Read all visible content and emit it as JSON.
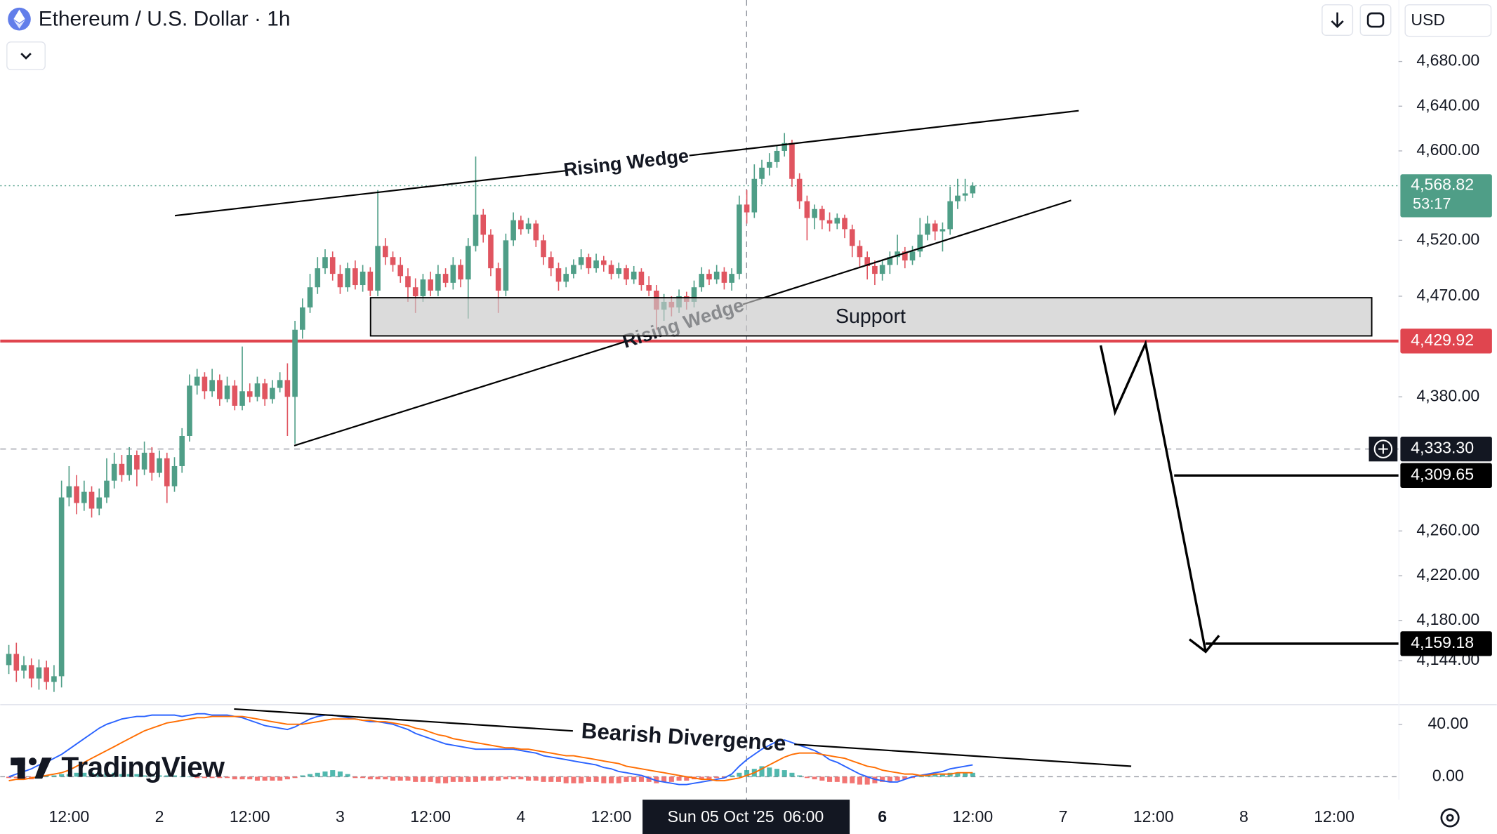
{
  "header": {
    "title": "Ethereum / U.S. Dollar · 1h",
    "currency": "USD"
  },
  "watermark": "TradingView",
  "chart_data": [
    {
      "type": "candlestick",
      "categories": [
        null,
        null,
        null,
        null,
        null,
        null,
        null,
        null,
        "12:00",
        null,
        null,
        null,
        null,
        null,
        null,
        null,
        null,
        null,
        null,
        null,
        "2",
        null,
        null,
        null,
        null,
        null,
        null,
        null,
        null,
        null,
        null,
        null,
        "12:00",
        null,
        null,
        null,
        null,
        null,
        null,
        null,
        null,
        null,
        null,
        null,
        "3",
        null,
        null,
        null,
        null,
        null,
        null,
        null,
        null,
        null,
        null,
        null,
        "12:00",
        null,
        null,
        null,
        null,
        null,
        null,
        null,
        null,
        null,
        null,
        null,
        "4",
        null,
        null,
        null,
        null,
        null,
        null,
        null,
        null,
        null,
        null,
        null,
        "12:00",
        null,
        null,
        null,
        null,
        null,
        null,
        null,
        null,
        null,
        null,
        null,
        null,
        null,
        null,
        null,
        null,
        null,
        null,
        null,
        null,
        null,
        null,
        null,
        null,
        null,
        null,
        null,
        null,
        null,
        null,
        null,
        null,
        null,
        null,
        null,
        "6",
        null,
        null,
        null,
        null,
        null,
        null,
        null,
        null,
        null,
        null,
        null,
        "12:00"
      ],
      "future_ticks": [
        "7",
        "12:00",
        "8",
        "12:00"
      ],
      "open": [
        4140,
        4150,
        4135,
        4140,
        4128,
        4138,
        4125,
        4130,
        4290,
        4300,
        4285,
        4295,
        4280,
        4290,
        4305,
        4320,
        4310,
        4328,
        4315,
        4330,
        4312,
        4325,
        4300,
        4318,
        4345,
        4390,
        4398,
        4385,
        4395,
        4378,
        4390,
        4372,
        4385,
        4380,
        4392,
        4378,
        4388,
        4395,
        4380,
        4440,
        4460,
        4478,
        4495,
        4505,
        4490,
        4478,
        4495,
        4480,
        4492,
        4475,
        4515,
        4505,
        4498,
        4488,
        4478,
        4470,
        4485,
        4475,
        4490,
        4482,
        4498,
        4485,
        4515,
        4543,
        4525,
        4495,
        4475,
        4520,
        4538,
        4530,
        4535,
        4520,
        4505,
        4495,
        4483,
        4490,
        4498,
        4505,
        4495,
        4502,
        4498,
        4490,
        4495,
        4485,
        4492,
        4480,
        4475,
        4458,
        4465,
        4460,
        4470,
        4465,
        4478,
        4490,
        4485,
        4492,
        4482,
        4490,
        4552,
        4545,
        4575,
        4585,
        4590,
        4600,
        4607,
        4575,
        4555,
        4540,
        4548,
        4538,
        4535,
        4540,
        4530,
        4515,
        4505,
        4497,
        4490,
        4498,
        4505,
        4510,
        4502,
        4510,
        4525,
        4535,
        4528,
        4530,
        4555,
        4560,
        4562
      ],
      "high": [
        4158,
        4160,
        4148,
        4146,
        4145,
        4144,
        4140,
        4305,
        4318,
        4310,
        4305,
        4300,
        4298,
        4325,
        4330,
        4328,
        4335,
        4332,
        4340,
        4335,
        4332,
        4330,
        4326,
        4352,
        4400,
        4405,
        4402,
        4405,
        4400,
        4398,
        4395,
        4425,
        4392,
        4398,
        4396,
        4395,
        4402,
        4410,
        4448,
        4468,
        4490,
        4505,
        4512,
        4510,
        4498,
        4500,
        4502,
        4498,
        4496,
        4565,
        4522,
        4510,
        4505,
        4495,
        4486,
        4490,
        4492,
        4498,
        4495,
        4505,
        4503,
        4522,
        4595,
        4548,
        4530,
        4500,
        4526,
        4545,
        4542,
        4540,
        4538,
        4525,
        4510,
        4500,
        4496,
        4503,
        4512,
        4508,
        4508,
        4506,
        4502,
        4500,
        4498,
        4497,
        4495,
        4488,
        4480,
        4472,
        4470,
        4476,
        4474,
        4484,
        4496,
        4494,
        4498,
        4496,
        4495,
        4560,
        4565,
        4588,
        4592,
        4598,
        4605,
        4616,
        4610,
        4580,
        4560,
        4552,
        4551,
        4545,
        4544,
        4543,
        4534,
        4520,
        4510,
        4502,
        4503,
        4510,
        4525,
        4514,
        4515,
        4540,
        4542,
        4538,
        4536,
        4568,
        4575,
        4575,
        4572
      ],
      "low": [
        4132,
        4125,
        4128,
        4120,
        4118,
        4118,
        4116,
        4120,
        4282,
        4275,
        4278,
        4272,
        4274,
        4285,
        4298,
        4304,
        4305,
        4300,
        4310,
        4305,
        4308,
        4285,
        4295,
        4312,
        4340,
        4382,
        4378,
        4380,
        4372,
        4375,
        4368,
        4368,
        4375,
        4376,
        4372,
        4374,
        4384,
        4345,
        4338,
        4432,
        4455,
        4472,
        4490,
        4484,
        4472,
        4474,
        4476,
        4474,
        4470,
        4470,
        4498,
        4492,
        4482,
        4465,
        4455,
        4465,
        4470,
        4470,
        4478,
        4476,
        4478,
        4450,
        4510,
        4518,
        4488,
        4455,
        4470,
        4515,
        4525,
        4526,
        4514,
        4498,
        4488,
        4475,
        4478,
        4486,
        4494,
        4490,
        4491,
        4492,
        4485,
        4486,
        4480,
        4481,
        4475,
        4470,
        4440,
        4448,
        4452,
        4455,
        4458,
        4460,
        4474,
        4480,
        4481,
        4476,
        4475,
        4485,
        4535,
        4540,
        4570,
        4578,
        4585,
        4595,
        4568,
        4548,
        4520,
        4530,
        4530,
        4528,
        4530,
        4522,
        4505,
        4495,
        4485,
        4480,
        4484,
        4490,
        4498,
        4495,
        4498,
        4505,
        4520,
        4520,
        4510,
        4525,
        4548,
        4555,
        4558
      ],
      "close": [
        4150,
        4135,
        4140,
        4128,
        4138,
        4125,
        4130,
        4290,
        4300,
        4285,
        4295,
        4280,
        4290,
        4305,
        4320,
        4310,
        4328,
        4315,
        4330,
        4312,
        4325,
        4300,
        4318,
        4345,
        4390,
        4398,
        4385,
        4395,
        4378,
        4390,
        4372,
        4385,
        4380,
        4392,
        4378,
        4388,
        4395,
        4380,
        4440,
        4460,
        4478,
        4495,
        4505,
        4490,
        4478,
        4495,
        4480,
        4492,
        4475,
        4515,
        4505,
        4498,
        4488,
        4478,
        4470,
        4485,
        4475,
        4490,
        4482,
        4498,
        4485,
        4515,
        4543,
        4525,
        4495,
        4475,
        4520,
        4538,
        4530,
        4535,
        4520,
        4505,
        4495,
        4483,
        4490,
        4498,
        4505,
        4495,
        4502,
        4498,
        4490,
        4495,
        4485,
        4492,
        4480,
        4475,
        4458,
        4465,
        4460,
        4470,
        4465,
        4478,
        4490,
        4485,
        4492,
        4482,
        4490,
        4552,
        4545,
        4575,
        4585,
        4590,
        4600,
        4607,
        4575,
        4555,
        4540,
        4548,
        4538,
        4535,
        4540,
        4530,
        4515,
        4505,
        4497,
        4490,
        4498,
        4505,
        4510,
        4502,
        4510,
        4525,
        4535,
        4528,
        4530,
        4555,
        4560,
        4562,
        4568.82
      ],
      "up_color": "#4f9e87",
      "down_color": "#e05560",
      "ylim": [
        4105,
        4735
      ],
      "yticks": [
        {
          "value": 4680,
          "label": "4,680.00"
        },
        {
          "value": 4640,
          "label": "4,640.00"
        },
        {
          "value": 4600,
          "label": "4,600.00"
        },
        {
          "value": 4520,
          "label": "4,520.00"
        },
        {
          "value": 4470,
          "label": "4,470.00"
        },
        {
          "value": 4380,
          "label": "4,380.00"
        },
        {
          "value": 4260,
          "label": "4,260.00"
        },
        {
          "value": 4220,
          "label": "4,220.00"
        },
        {
          "value": 4180,
          "label": "4,180.00"
        },
        {
          "value": 4144,
          "label": "4,144.00"
        }
      ],
      "price_lines": [
        {
          "value": 4568.82,
          "label": "4,568.82",
          "color": "#4f9e87",
          "style": "dotted"
        },
        {
          "value": 4429.92,
          "label": "4,429.92",
          "color": "#e0454f",
          "style": "solid"
        },
        {
          "value": 4333.3,
          "label": "4,333.30",
          "color": "#131722",
          "style": "dashed"
        },
        {
          "value": 4309.65,
          "label": "4,309.65",
          "color": "#000000",
          "style": "ray"
        },
        {
          "value": 4159.18,
          "label": "4,159.18",
          "color": "#000000",
          "style": "ray"
        }
      ],
      "countdown": "53:17",
      "crosshair_time": "Sun 05 Oct '25  06:00",
      "annotations": [
        "Rising Wedge",
        "Rising Wedge",
        "Support"
      ]
    },
    {
      "type": "macd",
      "ylim": [
        -17.5,
        55.3
      ],
      "yticks": [
        {
          "value": 40,
          "label": "40.00"
        },
        {
          "value": 0,
          "label": "0.00"
        }
      ],
      "series": [
        {
          "color": "#2962ff",
          "values": [
            0,
            2,
            4,
            6,
            9,
            11,
            14,
            17,
            21,
            25,
            29,
            33,
            37,
            40,
            42,
            44,
            45,
            46,
            46,
            47,
            47,
            47,
            47,
            46,
            47,
            48,
            48,
            47,
            47,
            47,
            46,
            45,
            43,
            41,
            39,
            38,
            37,
            36,
            38,
            41,
            44,
            46,
            47,
            47,
            46,
            45,
            44,
            43,
            42,
            42,
            41,
            40,
            38,
            36,
            33,
            31,
            29,
            27,
            25,
            24,
            23,
            22,
            21,
            21,
            21,
            21,
            21,
            21,
            20,
            19,
            18,
            16,
            15,
            14,
            13,
            12,
            11,
            10,
            9,
            7,
            6,
            4,
            3,
            2,
            1,
            -1,
            -3,
            -4,
            -5,
            -6,
            -6,
            -5,
            -4,
            -3,
            -2,
            -1,
            2,
            8,
            13,
            17,
            21,
            24,
            27,
            28,
            26,
            24,
            22,
            20,
            17,
            13,
            11,
            8,
            5,
            2,
            0,
            -2,
            -3,
            -4,
            -4,
            -2,
            0,
            1,
            2,
            3,
            4,
            6,
            7,
            8,
            9
          ]
        },
        {
          "color": "#ff6d00",
          "values": [
            -3,
            -2,
            -2,
            -1,
            0,
            1,
            2,
            3,
            5,
            8,
            11,
            14,
            17,
            20,
            23,
            26,
            29,
            32,
            35,
            37,
            39,
            41,
            42,
            43,
            44,
            45,
            45,
            46,
            46,
            46,
            46,
            46,
            45,
            44,
            43,
            42,
            41,
            40,
            40,
            40,
            41,
            42,
            43,
            44,
            44,
            44,
            44,
            43,
            43,
            42,
            42,
            41,
            40,
            39,
            37,
            36,
            34,
            32,
            31,
            29,
            28,
            27,
            26,
            25,
            24,
            23,
            22,
            22,
            21,
            21,
            20,
            19,
            18,
            17,
            16,
            16,
            15,
            14,
            13,
            12,
            11,
            10,
            8,
            7,
            6,
            5,
            4,
            3,
            2,
            1,
            0,
            -1,
            -2,
            -2,
            -3,
            -3,
            -2,
            -1,
            1,
            3,
            6,
            9,
            12,
            15,
            17,
            18,
            18,
            18,
            17,
            16,
            15,
            14,
            12,
            10,
            8,
            7,
            5,
            4,
            3,
            2,
            2,
            1,
            1,
            2,
            2,
            2,
            3,
            3,
            3
          ]
        }
      ],
      "histogram": {
        "up_color": "#26a69a",
        "down_color": "#ef5350",
        "values": [
          -1,
          -1,
          -1,
          -2,
          -1,
          1,
          1,
          2,
          2,
          3,
          3,
          3,
          3,
          3,
          3,
          2,
          2,
          2,
          1,
          1,
          1,
          1,
          1,
          0,
          0,
          -1,
          -1,
          -1,
          -1,
          -1,
          -2,
          -2,
          -2,
          -3,
          -3,
          -3,
          -3,
          -2,
          -1,
          1,
          2,
          3,
          4,
          5,
          4,
          2,
          -1,
          -1,
          -2,
          -2,
          -2,
          -3,
          -3,
          -3,
          -4,
          -4,
          -4,
          -5,
          -5,
          -4,
          -4,
          -4,
          -4,
          -3,
          -3,
          -3,
          -2,
          -2,
          -2,
          -3,
          -3,
          -4,
          -4,
          -4,
          -5,
          -5,
          -5,
          -4,
          -4,
          -5,
          -5,
          -5,
          -4,
          -4,
          -4,
          -4,
          -5,
          -4,
          -4,
          -3,
          -3,
          -2,
          -2,
          -2,
          -1,
          -1,
          1,
          3,
          5,
          6,
          8,
          7,
          6,
          5,
          3,
          1,
          -1,
          -2,
          -3,
          -4,
          -4,
          -5,
          -5,
          -6,
          -6,
          -5,
          -4,
          -4,
          -3,
          -2,
          -1,
          1,
          2,
          2,
          2,
          3,
          3,
          3,
          3
        ]
      },
      "annotations": [
        "Bearish Divergence"
      ]
    }
  ]
}
